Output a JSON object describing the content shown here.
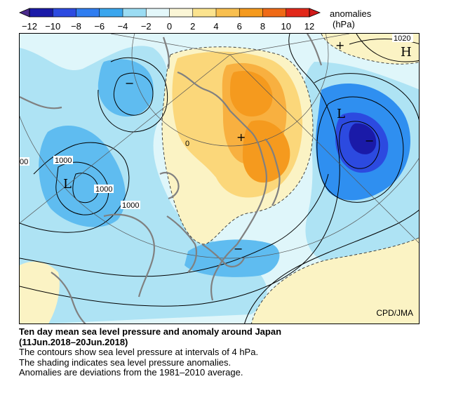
{
  "legend": {
    "title": "anomalies",
    "unit": "(hPa)",
    "ticks": [
      "−12",
      "−10",
      "−8",
      "−6",
      "−4",
      "−2",
      "0",
      "2",
      "4",
      "6",
      "8",
      "10",
      "12"
    ],
    "colors": [
      "#1a1aa8",
      "#2c4ae0",
      "#2f7df0",
      "#3aa6ee",
      "#9bdcf3",
      "#e3f7fa",
      "#fbf6d6",
      "#fbe38e",
      "#f8bf4f",
      "#f59a1e",
      "#ef6a16",
      "#e2281a"
    ]
  },
  "map": {
    "contour_labels": [
      "1020",
      "1000",
      "1000",
      "1000",
      "00",
      "0"
    ],
    "pressure_symbols": {
      "high": "H",
      "low": "L",
      "low2": "L"
    },
    "anomaly_signs": {
      "plus": "+",
      "minus": "−"
    },
    "credit": "CPD/JMA"
  },
  "caption": {
    "title_line1": "Ten day mean sea level pressure and anomaly around Japan",
    "title_line2": "(11Jun.2018–20Jun.2018)",
    "line1": "The contours show sea level pressure at intervals of 4 hPa.",
    "line2": "The shading indicates sea level pressure anomalies.",
    "line3": "Anomalies are deviations from the 1981–2010 average."
  }
}
